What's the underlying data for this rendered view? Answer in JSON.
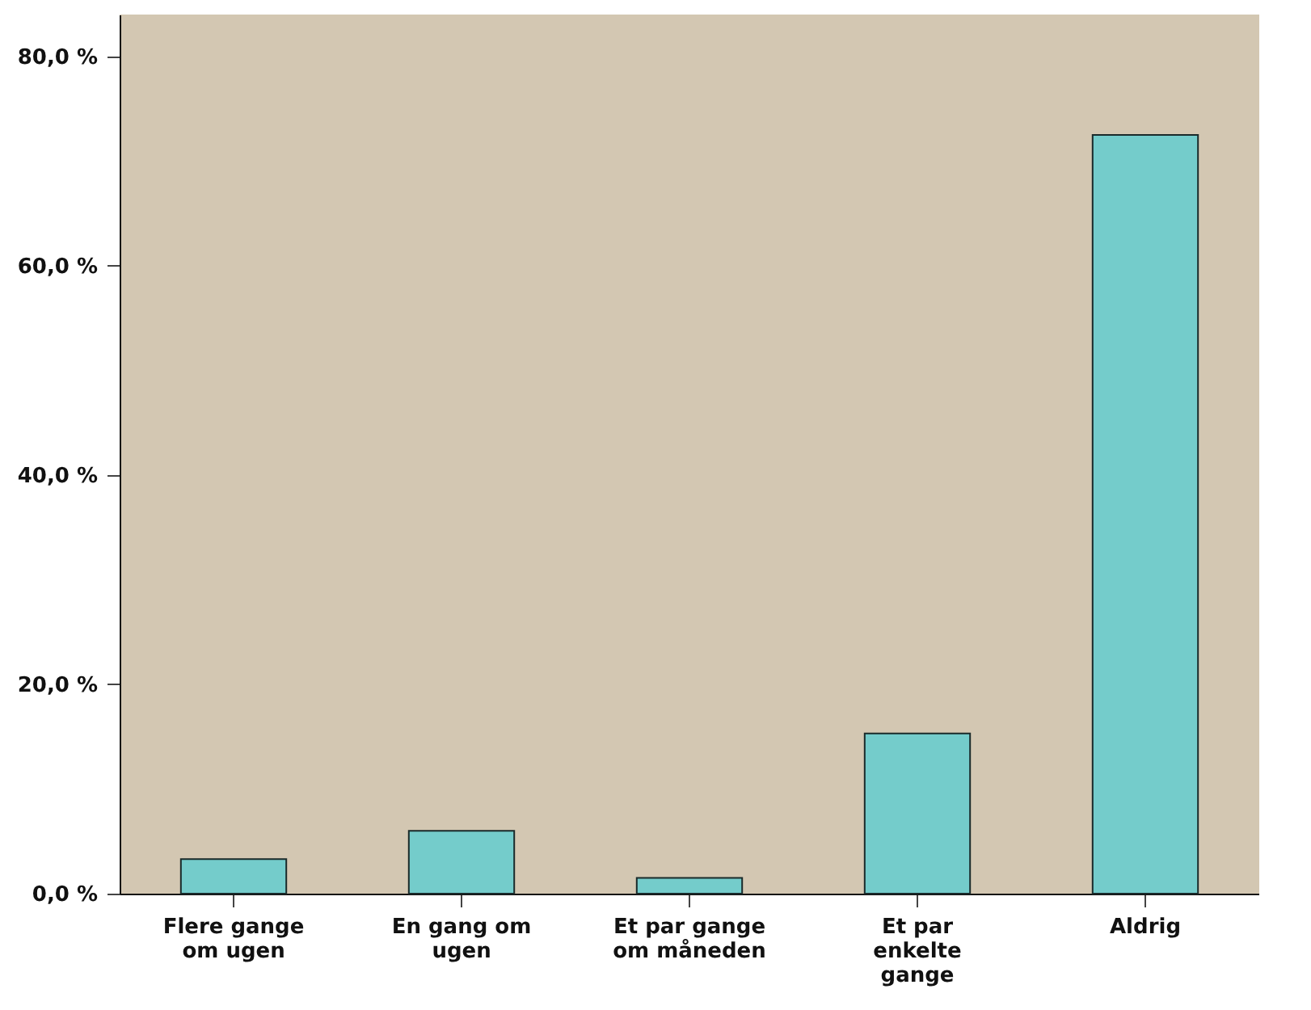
{
  "chart_data": {
    "type": "bar",
    "categories": [
      "Flere gange om ugen",
      "En gang om ugen",
      "Et par gange om måneden",
      "Et par enkelte gange",
      "Aldrig"
    ],
    "values": [
      3.3,
      6.0,
      1.5,
      15.3,
      72.5
    ],
    "color": "#74cccb",
    "ylim": [
      0,
      84
    ],
    "yticks": [
      {
        "value": 0,
        "label": "0,0 %"
      },
      {
        "value": 20,
        "label": "20,0 %"
      },
      {
        "value": 40,
        "label": "40,0 %"
      },
      {
        "value": 60,
        "label": "60,0 %"
      },
      {
        "value": 80,
        "label": "80,0 %"
      }
    ],
    "grid": false
  }
}
